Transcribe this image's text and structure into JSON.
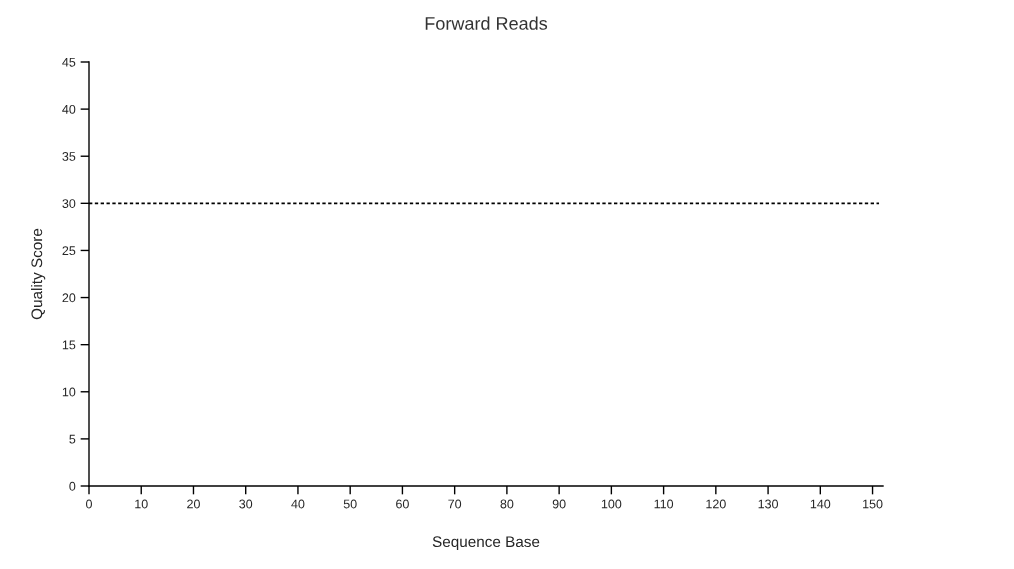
{
  "chart_data": {
    "type": "line",
    "title": "Forward Reads",
    "xlabel": "Sequence Base",
    "ylabel": "Quality Score",
    "xlim": [
      0,
      152
    ],
    "xticks": [
      0,
      10,
      20,
      30,
      40,
      50,
      60,
      70,
      80,
      90,
      100,
      110,
      120,
      130,
      140,
      150
    ],
    "ylim": [
      0,
      45
    ],
    "yticks": [
      0,
      5,
      10,
      15,
      20,
      25,
      30,
      35,
      40,
      45
    ],
    "ref_lines": [
      {
        "axis": "y",
        "value": 30,
        "label": null,
        "color": "#000000",
        "line_style": "dotted"
      }
    ],
    "grid": false,
    "legend": false
  }
}
